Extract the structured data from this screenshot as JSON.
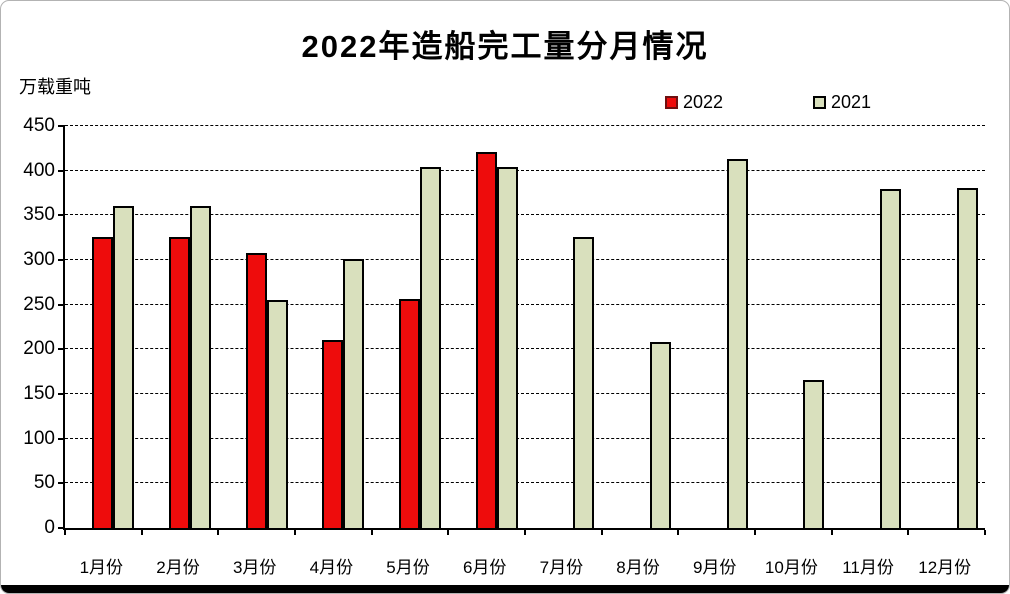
{
  "chart_data": {
    "type": "bar",
    "title": "2022年造船完工量分月情况",
    "ylabel": "万载重吨",
    "xlabel": "",
    "categories": [
      "1月份",
      "2月份",
      "3月份",
      "4月份",
      "5月份",
      "6月份",
      "7月份",
      "8月份",
      "9月份",
      "10月份",
      "11月份",
      "12月份"
    ],
    "series": [
      {
        "name": "2022",
        "color": "#ee0c0c",
        "bar_border": "#000000",
        "swatch_border": "#6e1010",
        "values": [
          326,
          326,
          308,
          210,
          256,
          421,
          null,
          null,
          null,
          null,
          null,
          null
        ]
      },
      {
        "name": "2021",
        "color": "#d9e0bd",
        "bar_border": "#000000",
        "swatch_border": "#000000",
        "values": [
          360,
          360,
          255,
          301,
          404,
          404,
          326,
          208,
          413,
          166,
          379,
          381
        ]
      }
    ],
    "ylim": [
      0,
      450
    ],
    "ytick_step": 50,
    "grid": "dashed-horizontal",
    "legend_position": "top-right",
    "frame_bottom_bar_color": "#000000"
  }
}
